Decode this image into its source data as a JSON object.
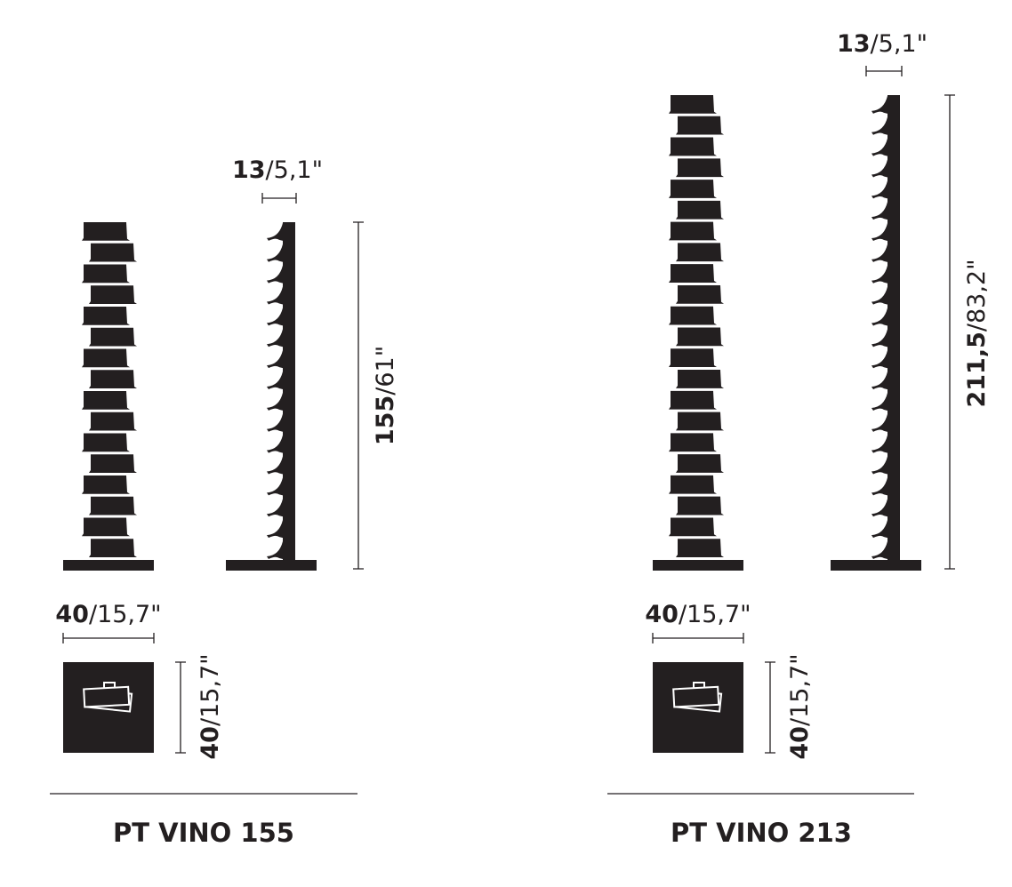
{
  "color": "#231f20",
  "products": [
    {
      "name": "PT VINO 155",
      "depth_label": {
        "bold": "13",
        "rest": "/5,1\""
      },
      "height_label": {
        "bold": "155",
        "rest": "/61\""
      },
      "width_label": {
        "bold": "40",
        "rest": "/15,7\""
      },
      "base_depth_label": {
        "bold": "40",
        "rest": "/15,7\""
      },
      "icon": "bottle-rack-top-view-icon"
    },
    {
      "name": "PT VINO 213",
      "depth_label": {
        "bold": "13",
        "rest": "/5,1\""
      },
      "height_label": {
        "bold": "211,5",
        "rest": "/83,2\""
      },
      "width_label": {
        "bold": "40",
        "rest": "/15,7\""
      },
      "base_depth_label": {
        "bold": "40",
        "rest": "/15,7\""
      },
      "icon": "bottle-rack-top-view-icon"
    }
  ]
}
